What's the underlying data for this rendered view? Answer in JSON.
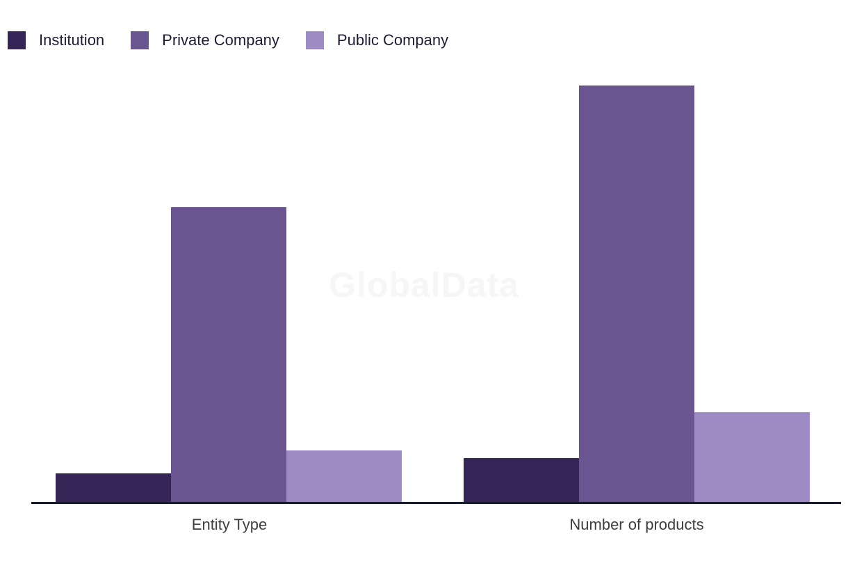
{
  "legend": {
    "items": [
      {
        "label": "Institution",
        "color": "#362657"
      },
      {
        "label": "Private Company",
        "color": "#6a5591"
      },
      {
        "label": "Public Company",
        "color": "#9e8bc4"
      }
    ]
  },
  "watermark": {
    "text": "GlobalData"
  },
  "chart_data": {
    "type": "bar",
    "categories": [
      "Entity Type",
      "Number of products"
    ],
    "series": [
      {
        "name": "Institution",
        "color": "#362657",
        "values": [
          41,
          63
        ]
      },
      {
        "name": "Private Company",
        "color": "#6a5591",
        "values": [
          424,
          599
        ]
      },
      {
        "name": "Public Company",
        "color": "#9e8bc4",
        "values": [
          74,
          129
        ]
      }
    ],
    "title": "",
    "xlabel": "",
    "ylabel": "",
    "ylim": [
      0,
      622
    ],
    "grid": false,
    "y_axis_visible": false,
    "legend_position": "top-left",
    "axis_color": "#181b2c",
    "label_color": "#3e3e3e"
  }
}
